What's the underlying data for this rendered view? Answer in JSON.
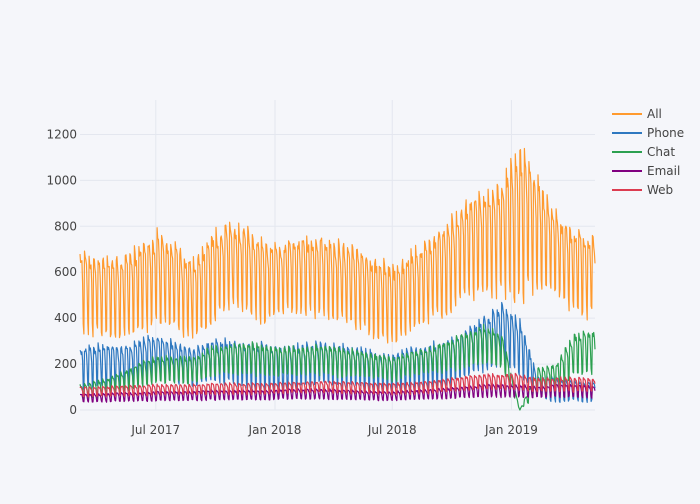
{
  "chart_data": {
    "type": "line",
    "title": "",
    "xlabel": "",
    "ylabel": "",
    "x_axis": {
      "type": "date",
      "range": [
        "2017-03-06",
        "2019-05-10"
      ],
      "ticks": [
        {
          "date": "2017-07-01",
          "label": "Jul 2017"
        },
        {
          "date": "2018-01-01",
          "label": "Jan 2018"
        },
        {
          "date": "2018-07-01",
          "label": "Jul 2018"
        },
        {
          "date": "2019-01-01",
          "label": "Jan 2019"
        }
      ]
    },
    "y_axis": {
      "range": [
        0,
        1350
      ],
      "ticks": [
        0,
        200,
        400,
        600,
        800,
        1000,
        1200
      ]
    },
    "grid": true,
    "legend_position": "top-right",
    "series": [
      {
        "name": "All",
        "color": "#ff9a2e",
        "x": [
          "2017-03-13",
          "2017-04-10",
          "2017-05-08",
          "2017-06-05",
          "2017-07-03",
          "2017-07-31",
          "2017-08-28",
          "2017-09-25",
          "2017-10-23",
          "2017-11-20",
          "2017-12-18",
          "2018-01-15",
          "2018-02-12",
          "2018-03-12",
          "2018-04-09",
          "2018-05-07",
          "2018-06-04",
          "2018-07-02",
          "2018-07-30",
          "2018-08-27",
          "2018-09-24",
          "2018-10-22",
          "2018-11-19",
          "2018-12-17",
          "2019-01-14",
          "2019-02-11",
          "2019-03-11",
          "2019-04-08",
          "2019-05-06"
        ],
        "high": [
          670,
          650,
          660,
          700,
          760,
          720,
          640,
          760,
          800,
          780,
          720,
          720,
          740,
          760,
          720,
          700,
          650,
          620,
          680,
          730,
          800,
          900,
          930,
          980,
          1120,
          1000,
          850,
          780,
          760
        ],
        "low": [
          350,
          330,
          320,
          350,
          380,
          360,
          320,
          380,
          450,
          440,
          380,
          430,
          430,
          420,
          400,
          360,
          320,
          300,
          350,
          400,
          430,
          480,
          520,
          520,
          500,
          560,
          520,
          430,
          420
        ]
      },
      {
        "name": "Phone",
        "color": "#2e78c0",
        "x": [
          "2017-03-13",
          "2017-04-10",
          "2017-05-08",
          "2017-06-05",
          "2017-07-03",
          "2017-07-31",
          "2017-08-28",
          "2017-09-25",
          "2017-10-23",
          "2017-11-20",
          "2017-12-18",
          "2018-01-15",
          "2018-02-12",
          "2018-03-12",
          "2018-04-09",
          "2018-05-07",
          "2018-06-04",
          "2018-07-02",
          "2018-07-30",
          "2018-08-27",
          "2018-09-24",
          "2018-10-22",
          "2018-11-19",
          "2018-12-17",
          "2019-01-14",
          "2019-02-11",
          "2019-03-11",
          "2019-04-08",
          "2019-05-06"
        ],
        "high": [
          270,
          280,
          270,
          300,
          320,
          290,
          260,
          300,
          300,
          290,
          280,
          270,
          280,
          290,
          280,
          270,
          250,
          240,
          260,
          280,
          300,
          340,
          400,
          450,
          390,
          140,
          140,
          130,
          120
        ],
        "low": [
          100,
          110,
          100,
          120,
          140,
          130,
          110,
          130,
          120,
          110,
          80,
          60,
          110,
          120,
          110,
          100,
          90,
          80,
          90,
          100,
          110,
          140,
          180,
          200,
          160,
          60,
          40,
          40,
          40
        ]
      },
      {
        "name": "Chat",
        "color": "#2ca050",
        "x": [
          "2017-03-13",
          "2017-04-10",
          "2017-05-08",
          "2017-06-05",
          "2017-07-03",
          "2017-07-31",
          "2017-08-28",
          "2017-09-25",
          "2017-10-23",
          "2017-11-20",
          "2017-12-18",
          "2018-01-15",
          "2018-02-12",
          "2018-03-12",
          "2018-04-09",
          "2018-05-07",
          "2018-06-04",
          "2018-07-02",
          "2018-07-30",
          "2018-08-27",
          "2018-09-24",
          "2018-10-22",
          "2018-11-19",
          "2018-12-17",
          "2019-01-14",
          "2019-02-11",
          "2019-03-11",
          "2019-04-08",
          "2019-05-06"
        ],
        "high": [
          110,
          130,
          160,
          200,
          230,
          230,
          230,
          270,
          280,
          290,
          280,
          270,
          270,
          280,
          270,
          260,
          240,
          230,
          250,
          270,
          300,
          330,
          360,
          330,
          0,
          180,
          200,
          330,
          340
        ],
        "low": [
          50,
          60,
          80,
          100,
          120,
          120,
          120,
          150,
          160,
          160,
          150,
          150,
          160,
          160,
          150,
          150,
          140,
          130,
          150,
          160,
          170,
          190,
          210,
          190,
          0,
          70,
          80,
          150,
          160
        ]
      },
      {
        "name": "Email",
        "color": "#800080",
        "x": [
          "2017-03-13",
          "2017-04-10",
          "2017-05-08",
          "2017-06-05",
          "2017-07-03",
          "2017-07-31",
          "2017-08-28",
          "2017-09-25",
          "2017-10-23",
          "2017-11-20",
          "2017-12-18",
          "2018-01-15",
          "2018-02-12",
          "2018-03-12",
          "2018-04-09",
          "2018-05-07",
          "2018-06-04",
          "2018-07-02",
          "2018-07-30",
          "2018-08-27",
          "2018-09-24",
          "2018-10-22",
          "2018-11-19",
          "2018-12-17",
          "2019-01-14",
          "2019-02-11",
          "2019-03-11",
          "2019-04-08",
          "2019-05-06"
        ],
        "high": [
          70,
          70,
          75,
          75,
          80,
          80,
          80,
          85,
          85,
          85,
          85,
          90,
          90,
          90,
          88,
          85,
          82,
          80,
          85,
          90,
          95,
          100,
          110,
          110,
          110,
          100,
          110,
          110,
          105
        ],
        "low": [
          35,
          35,
          38,
          40,
          40,
          42,
          42,
          45,
          45,
          45,
          45,
          48,
          48,
          48,
          46,
          45,
          44,
          42,
          45,
          48,
          50,
          55,
          58,
          58,
          58,
          55,
          58,
          58,
          55
        ]
      },
      {
        "name": "Web",
        "color": "#dc3c50",
        "x": [
          "2017-03-13",
          "2017-04-10",
          "2017-05-08",
          "2017-06-05",
          "2017-07-03",
          "2017-07-31",
          "2017-08-28",
          "2017-09-25",
          "2017-10-23",
          "2017-11-20",
          "2017-12-18",
          "2018-01-15",
          "2018-02-12",
          "2018-03-12",
          "2018-04-09",
          "2018-05-07",
          "2018-06-04",
          "2018-07-02",
          "2018-07-30",
          "2018-08-27",
          "2018-09-24",
          "2018-10-22",
          "2018-11-19",
          "2018-12-17",
          "2019-01-14",
          "2019-02-11",
          "2019-03-11",
          "2019-04-08",
          "2019-05-06"
        ],
        "high": [
          100,
          100,
          105,
          105,
          110,
          110,
          110,
          115,
          115,
          115,
          115,
          120,
          120,
          125,
          122,
          120,
          118,
          115,
          120,
          125,
          135,
          145,
          155,
          155,
          155,
          135,
          140,
          140,
          135
        ],
        "low": [
          60,
          60,
          62,
          65,
          65,
          68,
          68,
          70,
          70,
          70,
          70,
          75,
          75,
          78,
          75,
          72,
          70,
          68,
          72,
          76,
          82,
          88,
          92,
          92,
          90,
          80,
          82,
          82,
          80
        ]
      }
    ]
  }
}
